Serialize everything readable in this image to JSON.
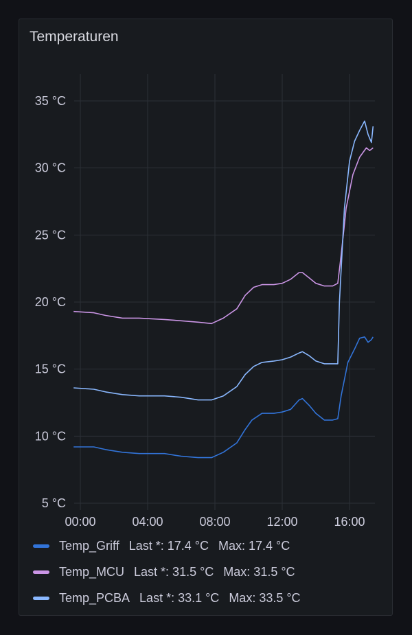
{
  "panel": {
    "title": "Temperaturen"
  },
  "colors": {
    "background": "#111217",
    "panel": "#181b1f",
    "grid": "#2c3037",
    "text": "#ccccdc"
  },
  "chart_data": {
    "type": "line",
    "title": "Temperaturen",
    "y_unit": "°C",
    "ylim": [
      5,
      36
    ],
    "y_ticks": [
      5,
      10,
      15,
      20,
      25,
      30,
      35
    ],
    "y_tick_labels": [
      "5 °C",
      "10 °C",
      "15 °C",
      "20 °C",
      "25 °C",
      "30 °C",
      "35 °C"
    ],
    "xlim": [
      -0.4,
      17.5
    ],
    "x_ticks": [
      0,
      4,
      8,
      12,
      16
    ],
    "x_tick_labels": [
      "00:00",
      "04:00",
      "08:00",
      "12:00",
      "16:00"
    ],
    "grid": true,
    "legend_position": "bottom",
    "series": [
      {
        "name": "Temp_Griff",
        "color": "#3274d9",
        "last_label": "Last *: 17.4 °C",
        "max_label": "Max: 17.4 °C",
        "x": [
          -0.4,
          0.8,
          1.5,
          2.5,
          3.5,
          5.0,
          6.0,
          7.0,
          7.8,
          8.5,
          9.3,
          9.8,
          10.2,
          10.8,
          11.5,
          12.0,
          12.5,
          13.0,
          13.2,
          13.6,
          14.0,
          14.5,
          15.0,
          15.3,
          15.5,
          15.9,
          16.3,
          16.6,
          16.9,
          17.1,
          17.3,
          17.4
        ],
        "y": [
          9.2,
          9.2,
          9.0,
          8.8,
          8.7,
          8.7,
          8.5,
          8.4,
          8.4,
          8.8,
          9.5,
          10.5,
          11.2,
          11.7,
          11.7,
          11.8,
          12.0,
          12.7,
          12.8,
          12.3,
          11.7,
          11.2,
          11.2,
          11.3,
          13.0,
          15.5,
          16.5,
          17.3,
          17.4,
          17.0,
          17.2,
          17.4
        ]
      },
      {
        "name": "Temp_MCU",
        "color": "#ca95e5",
        "last_label": "Last *: 31.5 °C",
        "max_label": "Max: 31.5 °C",
        "x": [
          -0.4,
          0.8,
          1.5,
          2.5,
          3.5,
          5.0,
          6.0,
          7.0,
          7.8,
          8.5,
          9.3,
          9.8,
          10.3,
          10.8,
          11.5,
          12.0,
          12.5,
          13.0,
          13.2,
          13.6,
          14.0,
          14.5,
          15.0,
          15.3,
          15.5,
          15.8,
          16.2,
          16.6,
          17.0,
          17.2,
          17.4
        ],
        "y": [
          19.3,
          19.2,
          19.0,
          18.8,
          18.8,
          18.7,
          18.6,
          18.5,
          18.4,
          18.8,
          19.5,
          20.5,
          21.1,
          21.3,
          21.3,
          21.4,
          21.7,
          22.2,
          22.2,
          21.8,
          21.4,
          21.2,
          21.2,
          21.4,
          23.5,
          27.0,
          29.5,
          30.8,
          31.5,
          31.3,
          31.5
        ]
      },
      {
        "name": "Temp_PCBA",
        "color": "#8ab8ff",
        "last_label": "Last *: 33.1 °C",
        "max_label": "Max: 33.5 °C",
        "x": [
          -0.4,
          0.8,
          1.5,
          2.5,
          3.5,
          5.0,
          6.0,
          7.0,
          7.8,
          8.5,
          9.3,
          9.8,
          10.3,
          10.8,
          11.5,
          12.0,
          12.5,
          13.0,
          13.2,
          13.6,
          14.0,
          14.5,
          15.0,
          15.3,
          15.4,
          15.7,
          16.0,
          16.3,
          16.6,
          16.9,
          17.1,
          17.3,
          17.4
        ],
        "y": [
          13.6,
          13.5,
          13.3,
          13.1,
          13.0,
          13.0,
          12.9,
          12.7,
          12.7,
          13.0,
          13.7,
          14.6,
          15.2,
          15.5,
          15.6,
          15.7,
          15.9,
          16.2,
          16.3,
          16.0,
          15.6,
          15.4,
          15.4,
          15.4,
          20.0,
          27.0,
          30.5,
          32.0,
          32.8,
          33.5,
          32.5,
          31.9,
          33.1
        ]
      }
    ]
  }
}
